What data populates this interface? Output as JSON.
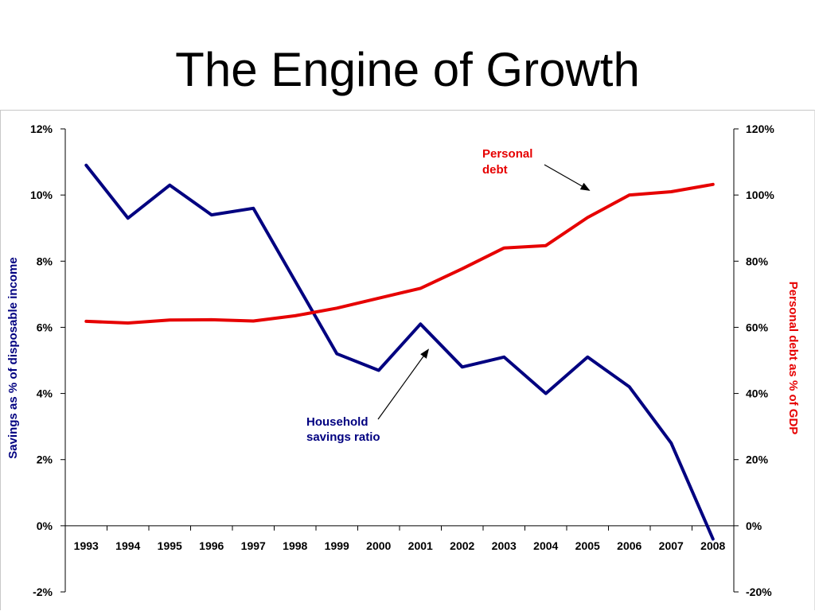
{
  "slide": {
    "title": "The Engine of Growth"
  },
  "colors": {
    "savings": "#000080",
    "debt": "#e60000",
    "axis": "#000000"
  },
  "chart_data": {
    "type": "line",
    "title": "",
    "xlabel": "",
    "ylabel_left": "Savings as %  of disposable income",
    "ylabel_right": "Personal debt as %  of GDP",
    "x": [
      "1993",
      "1994",
      "1995",
      "1996",
      "1997",
      "1998",
      "1999",
      "2000",
      "2001",
      "2002",
      "2003",
      "2004",
      "2005",
      "2006",
      "2007",
      "2008"
    ],
    "left_axis": {
      "range": [
        -2,
        12
      ],
      "ticks": [
        -2,
        0,
        2,
        4,
        6,
        8,
        10,
        12
      ],
      "tick_labels": [
        "-2%",
        "0%",
        "2%",
        "4%",
        "6%",
        "8%",
        "10%",
        "12%"
      ]
    },
    "right_axis": {
      "range": [
        -20,
        120
      ],
      "ticks": [
        -20,
        0,
        20,
        40,
        60,
        80,
        100,
        120
      ],
      "tick_labels": [
        "-20%",
        "0%",
        "20%",
        "40%",
        "60%",
        "80%",
        "100%",
        "120%"
      ]
    },
    "series": [
      {
        "name": "Household savings ratio",
        "axis": "left",
        "values": [
          10.9,
          9.3,
          10.3,
          9.4,
          9.6,
          7.4,
          5.2,
          4.7,
          6.1,
          4.8,
          5.1,
          4.0,
          5.1,
          4.2,
          2.5,
          -0.4
        ]
      },
      {
        "name": "Personal debt",
        "axis": "right",
        "values": [
          61.8,
          61.3,
          62.2,
          62.3,
          61.9,
          63.5,
          65.8,
          68.8,
          71.8,
          77.7,
          84.0,
          84.7,
          93.2,
          100.0,
          101.0,
          103.2
        ]
      }
    ],
    "annotations": [
      {
        "lines": [
          "Personal",
          "debt"
        ],
        "series": "Personal debt"
      },
      {
        "lines": [
          "Household",
          "savings ratio"
        ],
        "series": "Household savings ratio"
      }
    ],
    "grid": false,
    "legend": "none"
  }
}
